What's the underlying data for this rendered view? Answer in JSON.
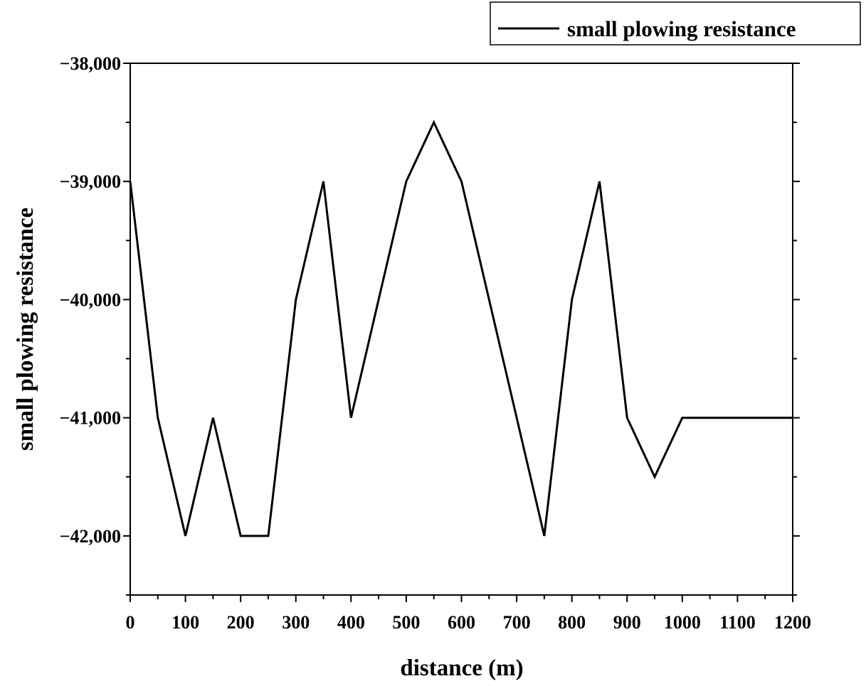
{
  "chart_data": {
    "type": "line",
    "title": "",
    "xlabel": "distance (m)",
    "ylabel": "small plowing resistance",
    "xlim": [
      0,
      1200
    ],
    "ylim": [
      -42500,
      -38000
    ],
    "x_ticks": [
      0,
      100,
      200,
      300,
      400,
      500,
      600,
      700,
      800,
      900,
      1000,
      1100,
      1200
    ],
    "x_tick_labels": [
      "0",
      "100",
      "200",
      "300",
      "400",
      "500",
      "600",
      "700",
      "800",
      "900",
      "1000",
      "1100",
      "1200"
    ],
    "x_minor_ticks": [
      50,
      150,
      250,
      350,
      450,
      550,
      650,
      750,
      850,
      950,
      1050,
      1150
    ],
    "y_ticks": [
      -38000,
      -39000,
      -40000,
      -41000,
      -42000
    ],
    "y_tick_labels": [
      "−38,000",
      "−39,000",
      "−40,000",
      "−41,000",
      "−42,000"
    ],
    "y_minor_ticks": [
      -38500,
      -39500,
      -40500,
      -41500,
      -42500
    ],
    "grid": false,
    "legend_position": "top-right",
    "series": [
      {
        "name": "small plowing resistance",
        "color": "#000000",
        "x": [
          0,
          50,
          100,
          150,
          200,
          250,
          300,
          350,
          400,
          450,
          500,
          550,
          600,
          650,
          700,
          750,
          800,
          850,
          900,
          950,
          1000,
          1050,
          1100,
          1150,
          1200
        ],
        "values": [
          -39000,
          -41000,
          -42000,
          -41000,
          -42000,
          -42000,
          -40000,
          -39000,
          -41000,
          -40000,
          -39000,
          -38500,
          -39000,
          -40000,
          -41000,
          -42000,
          -40000,
          -39000,
          -41000,
          -41500,
          -41000,
          -41000,
          -41000,
          -41000,
          -41000
        ]
      }
    ]
  }
}
